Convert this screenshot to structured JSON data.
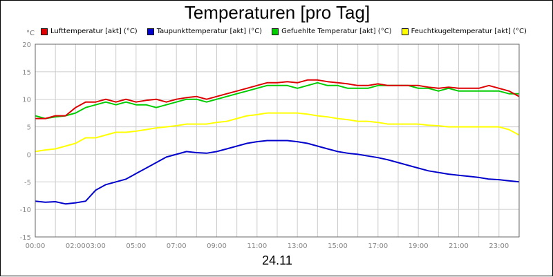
{
  "chart_data": {
    "type": "line",
    "title": "Temperaturen [pro Tag]",
    "unit_label": "°C",
    "date_label": "24.11",
    "xlim": [
      0,
      24
    ],
    "ylim": [
      -15,
      20
    ],
    "y_ticks": [
      "20",
      "15",
      "10",
      "5",
      "0",
      "-5",
      "-10",
      "-15"
    ],
    "x_tick_labels": [
      "00:00",
      "02:00",
      "03:00",
      "05:00",
      "07:00",
      "09:00",
      "11:00",
      "13:00",
      "15:00",
      "17:00",
      "19:00",
      "21:00",
      "23:00"
    ],
    "x_tick_hours": [
      0,
      2,
      3,
      5,
      7,
      9,
      11,
      13,
      15,
      17,
      19,
      21,
      23
    ],
    "grid": true,
    "legend_position": "top",
    "series": [
      {
        "name": "Lufttemperatur [akt] (°C)",
        "color": "#dd0000",
        "x": [
          0,
          0.5,
          1,
          1.5,
          2,
          2.5,
          3,
          3.5,
          4,
          4.5,
          5,
          5.5,
          6,
          6.5,
          7,
          7.5,
          8,
          8.5,
          9,
          9.5,
          10,
          10.5,
          11,
          11.5,
          12,
          12.5,
          13,
          13.5,
          14,
          14.5,
          15,
          15.5,
          16,
          16.5,
          17,
          17.5,
          18,
          18.5,
          19,
          19.5,
          20,
          20.5,
          21,
          21.5,
          22,
          22.5,
          23,
          23.5,
          24
        ],
        "y": [
          6.5,
          6.5,
          7.0,
          7.0,
          8.5,
          9.5,
          9.5,
          10.0,
          9.5,
          10.0,
          9.5,
          9.8,
          10.0,
          9.5,
          10.0,
          10.3,
          10.5,
          10.0,
          10.5,
          11.0,
          11.5,
          12.0,
          12.5,
          13.0,
          13.0,
          13.2,
          13.0,
          13.5,
          13.5,
          13.2,
          13.0,
          12.8,
          12.5,
          12.5,
          12.8,
          12.5,
          12.5,
          12.5,
          12.5,
          12.2,
          12.0,
          12.2,
          12.0,
          12.0,
          12.0,
          12.5,
          12.0,
          11.5,
          10.5
        ]
      },
      {
        "name": "Taupunkttemperatur [akt] (°C)",
        "color": "#0000cc",
        "x": [
          0,
          0.5,
          1,
          1.5,
          2,
          2.5,
          3,
          3.5,
          4,
          4.5,
          5,
          5.5,
          6,
          6.5,
          7,
          7.5,
          8,
          8.5,
          9,
          9.5,
          10,
          10.5,
          11,
          11.5,
          12,
          12.5,
          13,
          13.5,
          14,
          14.5,
          15,
          15.5,
          16,
          16.5,
          17,
          17.5,
          18,
          18.5,
          19,
          19.5,
          20,
          20.5,
          21,
          21.5,
          22,
          22.5,
          23,
          23.5,
          24
        ],
        "y": [
          -8.5,
          -8.7,
          -8.6,
          -9.0,
          -8.8,
          -8.5,
          -6.5,
          -5.5,
          -5.0,
          -4.5,
          -3.5,
          -2.5,
          -1.5,
          -0.5,
          0.0,
          0.5,
          0.3,
          0.2,
          0.5,
          1.0,
          1.5,
          2.0,
          2.3,
          2.5,
          2.5,
          2.5,
          2.3,
          2.0,
          1.5,
          1.0,
          0.5,
          0.2,
          0.0,
          -0.3,
          -0.6,
          -1.0,
          -1.5,
          -2.0,
          -2.5,
          -3.0,
          -3.3,
          -3.6,
          -3.8,
          -4.0,
          -4.2,
          -4.5,
          -4.6,
          -4.8,
          -5.0
        ]
      },
      {
        "name": "Gefuehlte Temperatur [akt] (°C)",
        "color": "#00cc00",
        "x": [
          0,
          0.5,
          1,
          1.5,
          2,
          2.5,
          3,
          3.5,
          4,
          4.5,
          5,
          5.5,
          6,
          6.5,
          7,
          7.5,
          8,
          8.5,
          9,
          9.5,
          10,
          10.5,
          11,
          11.5,
          12,
          12.5,
          13,
          13.5,
          14,
          14.5,
          15,
          15.5,
          16,
          16.5,
          17,
          17.5,
          18,
          18.5,
          19,
          19.5,
          20,
          20.5,
          21,
          21.5,
          22,
          22.5,
          23,
          23.5,
          24
        ],
        "y": [
          7.0,
          6.5,
          6.8,
          7.0,
          7.5,
          8.5,
          9.0,
          9.5,
          9.0,
          9.5,
          9.0,
          9.0,
          8.5,
          9.0,
          9.5,
          10.0,
          10.0,
          9.5,
          10.0,
          10.5,
          11.0,
          11.5,
          12.0,
          12.5,
          12.5,
          12.5,
          12.0,
          12.5,
          13.0,
          12.5,
          12.5,
          12.0,
          12.0,
          12.0,
          12.5,
          12.5,
          12.5,
          12.5,
          12.0,
          12.0,
          11.5,
          12.0,
          11.5,
          11.5,
          11.5,
          11.5,
          11.5,
          11.0,
          11.0
        ]
      },
      {
        "name": "Feuchtkugeltemperatur [akt] (°C)",
        "color": "#ffff00",
        "x": [
          0,
          0.5,
          1,
          1.5,
          2,
          2.5,
          3,
          3.5,
          4,
          4.5,
          5,
          5.5,
          6,
          6.5,
          7,
          7.5,
          8,
          8.5,
          9,
          9.5,
          10,
          10.5,
          11,
          11.5,
          12,
          12.5,
          13,
          13.5,
          14,
          14.5,
          15,
          15.5,
          16,
          16.5,
          17,
          17.5,
          18,
          18.5,
          19,
          19.5,
          20,
          20.5,
          21,
          21.5,
          22,
          22.5,
          23,
          23.5,
          24
        ],
        "y": [
          0.5,
          0.8,
          1.0,
          1.5,
          2.0,
          3.0,
          3.0,
          3.5,
          4.0,
          4.0,
          4.2,
          4.5,
          4.8,
          5.0,
          5.2,
          5.5,
          5.5,
          5.5,
          5.8,
          6.0,
          6.5,
          7.0,
          7.2,
          7.5,
          7.5,
          7.5,
          7.5,
          7.3,
          7.0,
          6.8,
          6.5,
          6.3,
          6.0,
          6.0,
          5.8,
          5.5,
          5.5,
          5.5,
          5.5,
          5.3,
          5.2,
          5.0,
          5.0,
          5.0,
          5.0,
          5.0,
          5.0,
          4.5,
          3.5
        ]
      }
    ]
  }
}
